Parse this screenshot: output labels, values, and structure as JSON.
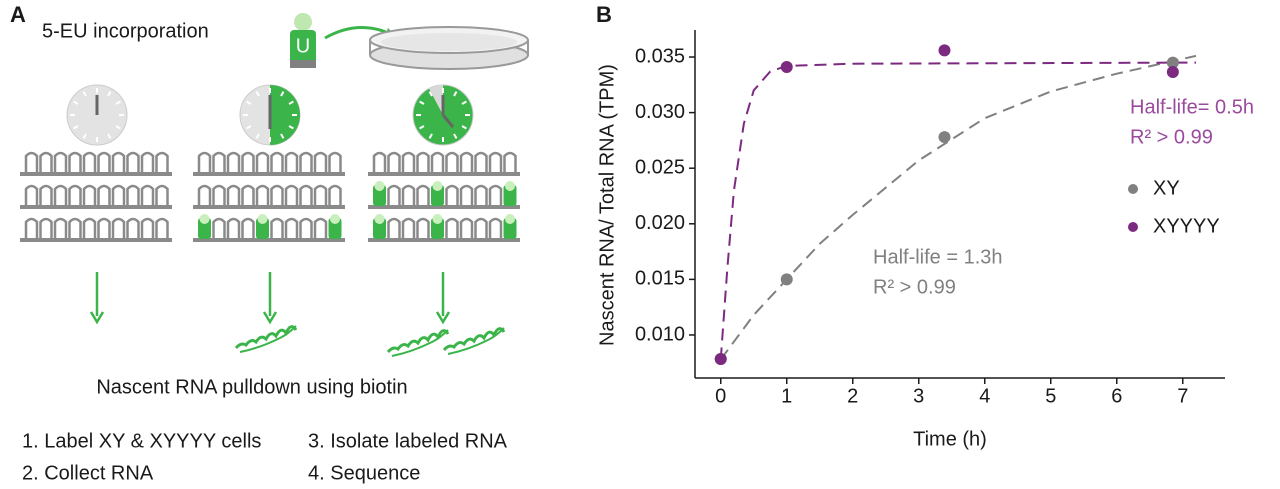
{
  "panel_a": {
    "label": "A",
    "heading": "5-EU incorporation",
    "vial_letter": "U",
    "pulldown": "Nascent RNA pulldown using biotin",
    "steps": [
      "1. Label XY & XYYYY cells",
      "2. Collect RNA",
      "3. Isolate labeled RNA",
      "4. Sequence"
    ]
  },
  "chart_data": {
    "type": "scatter",
    "panel_label": "B",
    "x_label": "Time (h)",
    "y_label": "Nascent RNA/ Total RNA (TPM)",
    "xlim": [
      -0.39,
      7.64
    ],
    "ylim": [
      0.00613,
      0.03743
    ],
    "xticks": [
      0,
      1,
      2,
      3,
      4,
      5,
      6,
      7
    ],
    "yticks": [
      {
        "value": 0.01,
        "label": "0.010"
      },
      0.015,
      {
        "value": 0.02,
        "label": "0.020"
      },
      0.025,
      {
        "value": 0.03,
        "label": "0.030"
      },
      0.035
    ],
    "legend": "right",
    "series": [
      {
        "name": "XY",
        "color": "#808080",
        "x": [
          0,
          1,
          3.39,
          6.85
        ],
        "values": [
          0.00784,
          0.015,
          0.0278,
          0.0345
        ]
      },
      {
        "name": "XYYYY",
        "color": "#7b2a80",
        "x": [
          0,
          1,
          3.39,
          6.85
        ],
        "values": [
          0.00784,
          0.0341,
          0.0356,
          0.03365
        ]
      }
    ],
    "fit_lines": [
      {
        "color": "#808080",
        "dash": true,
        "x": [
          0,
          0.5,
          1,
          1.5,
          2,
          3,
          4,
          5,
          6,
          7.2
        ],
        "values": [
          0.0078,
          0.0118,
          0.015,
          0.0182,
          0.0208,
          0.0257,
          0.0295,
          0.0319,
          0.0335,
          0.0351
        ]
      },
      {
        "color": "#7b2a80",
        "dash": true,
        "x": [
          0,
          0.1,
          0.2,
          0.35,
          0.5,
          0.75,
          1,
          2,
          7.2
        ],
        "values": [
          0.0078,
          0.016,
          0.023,
          0.029,
          0.032,
          0.0337,
          0.0342,
          0.0344,
          0.0345
        ]
      }
    ],
    "annotations": [
      {
        "text": "Half-life = 1.3h",
        "color": "#808080"
      },
      {
        "text": "R² > 0.99",
        "color": "#808080"
      },
      {
        "text": "Half-life= 0.5h",
        "color": "#9a4a9e"
      },
      {
        "text": "R² > 0.99",
        "color": "#9a4a9e"
      }
    ]
  }
}
